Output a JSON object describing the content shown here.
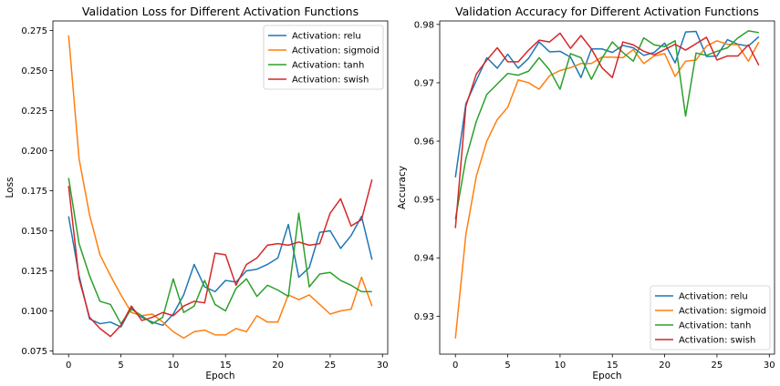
{
  "chart_data": [
    {
      "type": "line",
      "title": "Validation Loss for Different Activation Functions",
      "xlabel": "Epoch",
      "ylabel": "Loss",
      "xlim": [
        -1.5,
        30.5
      ],
      "ylim": [
        0.073,
        0.281
      ],
      "xticks": [
        0,
        5,
        10,
        15,
        20,
        25,
        30
      ],
      "yticks": [
        0.075,
        0.1,
        0.125,
        0.15,
        0.175,
        0.2,
        0.225,
        0.25,
        0.275
      ],
      "ytick_labels": [
        "0.075",
        "0.100",
        "0.125",
        "0.150",
        "0.175",
        "0.200",
        "0.225",
        "0.250",
        "0.275"
      ],
      "grid": false,
      "legend_position": "upper right",
      "x": [
        0,
        1,
        2,
        3,
        4,
        5,
        6,
        7,
        8,
        9,
        10,
        11,
        12,
        13,
        14,
        15,
        16,
        17,
        18,
        19,
        20,
        21,
        22,
        23,
        24,
        25,
        26,
        27,
        28,
        29
      ],
      "series": [
        {
          "name": "Activation: relu",
          "color": "#1f77b4",
          "values": [
            0.159,
            0.122,
            0.095,
            0.092,
            0.093,
            0.09,
            0.102,
            0.096,
            0.093,
            0.091,
            0.098,
            0.11,
            0.129,
            0.115,
            0.112,
            0.119,
            0.118,
            0.125,
            0.126,
            0.129,
            0.133,
            0.154,
            0.121,
            0.127,
            0.149,
            0.15,
            0.139,
            0.147,
            0.159,
            0.132
          ]
        },
        {
          "name": "Activation: sigmoid",
          "color": "#ff7f0e",
          "values": [
            0.272,
            0.195,
            0.16,
            0.135,
            0.122,
            0.11,
            0.099,
            0.097,
            0.098,
            0.093,
            0.087,
            0.083,
            0.087,
            0.088,
            0.085,
            0.085,
            0.089,
            0.087,
            0.097,
            0.093,
            0.093,
            0.11,
            0.107,
            0.11,
            0.104,
            0.098,
            0.1,
            0.101,
            0.121,
            0.103
          ]
        },
        {
          "name": "Activation: tanh",
          "color": "#2ca02c",
          "values": [
            0.183,
            0.142,
            0.122,
            0.106,
            0.104,
            0.092,
            0.101,
            0.097,
            0.092,
            0.096,
            0.12,
            0.099,
            0.103,
            0.119,
            0.104,
            0.1,
            0.114,
            0.12,
            0.109,
            0.116,
            0.113,
            0.109,
            0.161,
            0.115,
            0.123,
            0.124,
            0.119,
            0.116,
            0.112,
            0.112
          ]
        },
        {
          "name": "Activation: swish",
          "color": "#d62728",
          "values": [
            0.178,
            0.12,
            0.096,
            0.089,
            0.084,
            0.091,
            0.103,
            0.094,
            0.096,
            0.099,
            0.097,
            0.103,
            0.106,
            0.105,
            0.136,
            0.135,
            0.116,
            0.129,
            0.133,
            0.141,
            0.142,
            0.141,
            0.143,
            0.141,
            0.142,
            0.161,
            0.17,
            0.153,
            0.157,
            0.182
          ]
        }
      ]
    },
    {
      "type": "line",
      "title": "Validation Accuracy for Different Activation Functions",
      "xlabel": "Epoch",
      "ylabel": "Accuracy",
      "xlim": [
        -1.5,
        30.5
      ],
      "ylim": [
        0.9235,
        0.9806
      ],
      "xticks": [
        0,
        5,
        10,
        15,
        20,
        25,
        30
      ],
      "yticks": [
        0.93,
        0.94,
        0.95,
        0.96,
        0.97,
        0.98
      ],
      "ytick_labels": [
        "0.93",
        "0.94",
        "0.95",
        "0.96",
        "0.97",
        "0.98"
      ],
      "grid": false,
      "legend_position": "lower right",
      "x": [
        0,
        1,
        2,
        3,
        4,
        5,
        6,
        7,
        8,
        9,
        10,
        11,
        12,
        13,
        14,
        15,
        16,
        17,
        18,
        19,
        20,
        21,
        22,
        23,
        24,
        25,
        26,
        27,
        28,
        29
      ],
      "series": [
        {
          "name": "Activation: relu",
          "color": "#1f77b4",
          "values": [
            0.9538,
            0.9664,
            0.9704,
            0.9743,
            0.9725,
            0.9749,
            0.9725,
            0.9742,
            0.977,
            0.9753,
            0.9754,
            0.9744,
            0.9709,
            0.9758,
            0.9758,
            0.9752,
            0.9764,
            0.976,
            0.9747,
            0.9752,
            0.9768,
            0.9734,
            0.9787,
            0.9788,
            0.9745,
            0.9746,
            0.9774,
            0.9766,
            0.9763,
            0.9779
          ]
        },
        {
          "name": "Activation: sigmoid",
          "color": "#ff7f0e",
          "values": [
            0.9262,
            0.944,
            0.954,
            0.96,
            0.9637,
            0.9658,
            0.9705,
            0.97,
            0.9689,
            0.9712,
            0.9721,
            0.9726,
            0.9733,
            0.9733,
            0.9744,
            0.9744,
            0.9743,
            0.9757,
            0.9733,
            0.9746,
            0.975,
            0.9711,
            0.9737,
            0.9739,
            0.9763,
            0.9772,
            0.9766,
            0.9765,
            0.9737,
            0.977
          ]
        },
        {
          "name": "Activation: tanh",
          "color": "#2ca02c",
          "values": [
            0.9466,
            0.957,
            0.9634,
            0.968,
            0.9698,
            0.9716,
            0.9713,
            0.972,
            0.9743,
            0.9722,
            0.9689,
            0.975,
            0.9743,
            0.9706,
            0.9742,
            0.977,
            0.9752,
            0.9737,
            0.9777,
            0.9765,
            0.9762,
            0.9772,
            0.9643,
            0.9751,
            0.9747,
            0.9754,
            0.976,
            0.9777,
            0.9789,
            0.9786
          ]
        },
        {
          "name": "Activation: swish",
          "color": "#d62728",
          "values": [
            0.9451,
            0.966,
            0.9715,
            0.9739,
            0.976,
            0.9736,
            0.9736,
            0.9756,
            0.9773,
            0.977,
            0.9785,
            0.9759,
            0.9781,
            0.9758,
            0.9726,
            0.9709,
            0.977,
            0.9765,
            0.9754,
            0.9748,
            0.9757,
            0.9766,
            0.9756,
            0.9767,
            0.9778,
            0.9739,
            0.9746,
            0.9746,
            0.9765,
            0.973
          ]
        }
      ]
    }
  ]
}
